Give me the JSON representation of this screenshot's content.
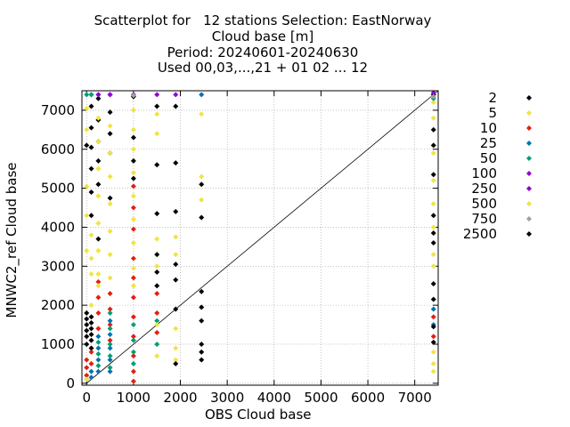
{
  "title": {
    "line1": "Scatterplot for   12 stations Selection: EastNorway",
    "line2": "Cloud base [m]",
    "line3": "Period: 20240601-20240630",
    "line4": "Used 00,03,...,21 + 01 02 ... 12"
  },
  "colors": {
    "c2": "#000000",
    "c5": "#f0e442",
    "c10": "#e51e10",
    "c25": "#0072b2",
    "c50": "#009e73",
    "c100": "#9400d3",
    "c250": "#8b00c8",
    "c500": "#f0e442",
    "c750": "#a0a0a0",
    "c2500": "#000000"
  },
  "chart_data": {
    "type": "scatter",
    "xlabel": "OBS Cloud base",
    "ylabel": "MNWC2_ref Cloud base",
    "xlim": [
      -100,
      7500
    ],
    "ylim": [
      -50,
      7500
    ],
    "x_ticks": [
      "0",
      "1000",
      "2000",
      "3000",
      "4000",
      "5000",
      "6000",
      "7000"
    ],
    "y_ticks": [
      "0",
      "1000",
      "2000",
      "3000",
      "4000",
      "5000",
      "6000",
      "7000"
    ],
    "grid": true,
    "legend_position": "right",
    "diagonal": [
      [
        0,
        0
      ],
      [
        7500,
        7500
      ]
    ],
    "series": [
      {
        "name": "2",
        "color": "#000000",
        "points": [
          [
            0,
            1800
          ],
          [
            0,
            1650
          ],
          [
            0,
            1500
          ],
          [
            0,
            1350
          ],
          [
            100,
            1700
          ],
          [
            100,
            1550
          ],
          [
            100,
            1400
          ],
          [
            100,
            1250
          ],
          [
            100,
            1100
          ],
          [
            0,
            1200
          ],
          [
            0,
            6100
          ],
          [
            100,
            7100
          ],
          [
            100,
            6550
          ],
          [
            100,
            6050
          ],
          [
            100,
            5500
          ],
          [
            100,
            4900
          ],
          [
            100,
            4300
          ],
          [
            250,
            7300
          ],
          [
            250,
            6750
          ],
          [
            250,
            6200
          ],
          [
            250,
            5700
          ],
          [
            250,
            5100
          ],
          [
            250,
            3700
          ],
          [
            500,
            7400
          ],
          [
            500,
            6950
          ],
          [
            500,
            6400
          ],
          [
            500,
            5900
          ],
          [
            500,
            4750
          ],
          [
            1000,
            7350
          ],
          [
            1000,
            6300
          ],
          [
            1000,
            5700
          ],
          [
            1000,
            5250
          ],
          [
            1500,
            5600
          ],
          [
            1500,
            4350
          ],
          [
            1500,
            3300
          ],
          [
            1500,
            2850
          ],
          [
            1500,
            2500
          ],
          [
            1900,
            5650
          ],
          [
            1900,
            4400
          ],
          [
            1900,
            3050
          ],
          [
            1900,
            2650
          ],
          [
            1900,
            1900
          ],
          [
            2450,
            5100
          ],
          [
            2450,
            4250
          ],
          [
            2450,
            2350
          ],
          [
            2450,
            1950
          ],
          [
            2450,
            1600
          ],
          [
            7400,
            7400
          ],
          [
            7400,
            6500
          ],
          [
            7400,
            6100
          ],
          [
            7400,
            5350
          ],
          [
            7400,
            4300
          ],
          [
            7400,
            3850
          ],
          [
            7400,
            3600
          ],
          [
            7400,
            2550
          ],
          [
            7400,
            2150
          ]
        ]
      },
      {
        "name": "5",
        "color": "#f0e442",
        "points": [
          [
            0,
            7050
          ],
          [
            0,
            6500
          ],
          [
            0,
            5050
          ],
          [
            0,
            4300
          ],
          [
            0,
            3400
          ],
          [
            100,
            3800
          ],
          [
            100,
            3200
          ],
          [
            100,
            2800
          ],
          [
            250,
            6800
          ],
          [
            250,
            6200
          ],
          [
            250,
            5500
          ],
          [
            250,
            4800
          ],
          [
            250,
            4100
          ],
          [
            250,
            3400
          ],
          [
            250,
            2800
          ],
          [
            500,
            6600
          ],
          [
            500,
            5900
          ],
          [
            500,
            5300
          ],
          [
            500,
            4600
          ],
          [
            500,
            3900
          ],
          [
            500,
            3300
          ],
          [
            1000,
            7000
          ],
          [
            1000,
            6500
          ],
          [
            1000,
            6000
          ],
          [
            1000,
            5400
          ],
          [
            1000,
            4800
          ],
          [
            1000,
            4200
          ],
          [
            1000,
            3600
          ],
          [
            1500,
            6900
          ],
          [
            1500,
            6400
          ],
          [
            1500,
            3700
          ],
          [
            1500,
            3000
          ],
          [
            1900,
            3750
          ],
          [
            1900,
            3300
          ],
          [
            2450,
            6900
          ],
          [
            2450,
            5300
          ],
          [
            2450,
            4700
          ],
          [
            7400,
            7200
          ],
          [
            7400,
            6800
          ],
          [
            7400,
            5900
          ],
          [
            7400,
            5200
          ],
          [
            7400,
            4600
          ],
          [
            7400,
            4000
          ],
          [
            7400,
            3300
          ],
          [
            7400,
            3000
          ]
        ]
      },
      {
        "name": "10",
        "color": "#e51e10",
        "points": [
          [
            0,
            600
          ],
          [
            0,
            400
          ],
          [
            0,
            200
          ],
          [
            100,
            800
          ],
          [
            100,
            500
          ],
          [
            250,
            2600
          ],
          [
            250,
            2200
          ],
          [
            250,
            1800
          ],
          [
            250,
            1400
          ],
          [
            500,
            2300
          ],
          [
            500,
            1900
          ],
          [
            500,
            1500
          ],
          [
            500,
            1100
          ],
          [
            1000,
            5050
          ],
          [
            1000,
            4500
          ],
          [
            1000,
            3950
          ],
          [
            1000,
            3200
          ],
          [
            1000,
            2700
          ],
          [
            1000,
            2200
          ],
          [
            1000,
            1700
          ],
          [
            1000,
            1200
          ],
          [
            1000,
            700
          ],
          [
            1000,
            300
          ],
          [
            1000,
            50
          ],
          [
            1500,
            2300
          ],
          [
            1500,
            1800
          ],
          [
            1500,
            1300
          ],
          [
            7400,
            1700
          ],
          [
            7400,
            1200
          ]
        ]
      },
      {
        "name": "25",
        "color": "#0072b2",
        "points": [
          [
            0,
            100
          ],
          [
            100,
            300
          ],
          [
            100,
            150
          ],
          [
            250,
            1200
          ],
          [
            250,
            900
          ],
          [
            250,
            600
          ],
          [
            250,
            300
          ],
          [
            500,
            1600
          ],
          [
            500,
            1250
          ],
          [
            500,
            900
          ],
          [
            500,
            600
          ],
          [
            500,
            300
          ],
          [
            100,
            7400
          ],
          [
            250,
            7400
          ],
          [
            2450,
            7400
          ],
          [
            7400,
            1900
          ],
          [
            7400,
            1500
          ]
        ]
      },
      {
        "name": "50",
        "color": "#009e73",
        "points": [
          [
            0,
            7400
          ],
          [
            100,
            7400
          ],
          [
            250,
            1050
          ],
          [
            250,
            750
          ],
          [
            250,
            450
          ],
          [
            500,
            1800
          ],
          [
            500,
            1400
          ],
          [
            500,
            1000
          ],
          [
            500,
            700
          ],
          [
            500,
            400
          ],
          [
            1000,
            1500
          ],
          [
            1000,
            1100
          ],
          [
            1000,
            800
          ],
          [
            1000,
            500
          ],
          [
            1500,
            1600
          ],
          [
            1500,
            1000
          ],
          [
            7400,
            7300
          ]
        ]
      },
      {
        "name": "100",
        "color": "#9400d3",
        "points": [
          [
            500,
            7400
          ],
          [
            1500,
            7400
          ],
          [
            1900,
            7400
          ],
          [
            7400,
            7450
          ]
        ]
      },
      {
        "name": "250",
        "color": "#8b00c8",
        "points": [
          [
            250,
            7400
          ],
          [
            1000,
            7400
          ]
        ]
      },
      {
        "name": "500",
        "color": "#f0e442",
        "points": [
          [
            0,
            100
          ],
          [
            100,
            2000
          ],
          [
            250,
            2500
          ],
          [
            500,
            2700
          ],
          [
            1000,
            2950
          ],
          [
            1000,
            2500
          ],
          [
            1500,
            1500
          ],
          [
            1500,
            700
          ],
          [
            1900,
            1400
          ],
          [
            1900,
            900
          ],
          [
            1900,
            600
          ],
          [
            7400,
            800
          ],
          [
            7400,
            500
          ],
          [
            7400,
            300
          ]
        ]
      },
      {
        "name": "750",
        "color": "#a0a0a0",
        "points": [
          [
            1000,
            7380
          ],
          [
            7400,
            7350
          ]
        ]
      },
      {
        "name": "2500",
        "color": "#000000",
        "points": [
          [
            1500,
            7100
          ],
          [
            1900,
            7100
          ],
          [
            2450,
            1000
          ],
          [
            2450,
            800
          ],
          [
            2450,
            600
          ],
          [
            1900,
            500
          ],
          [
            7400,
            1450
          ],
          [
            7400,
            1050
          ],
          [
            0,
            1000
          ],
          [
            100,
            900
          ]
        ]
      }
    ]
  }
}
